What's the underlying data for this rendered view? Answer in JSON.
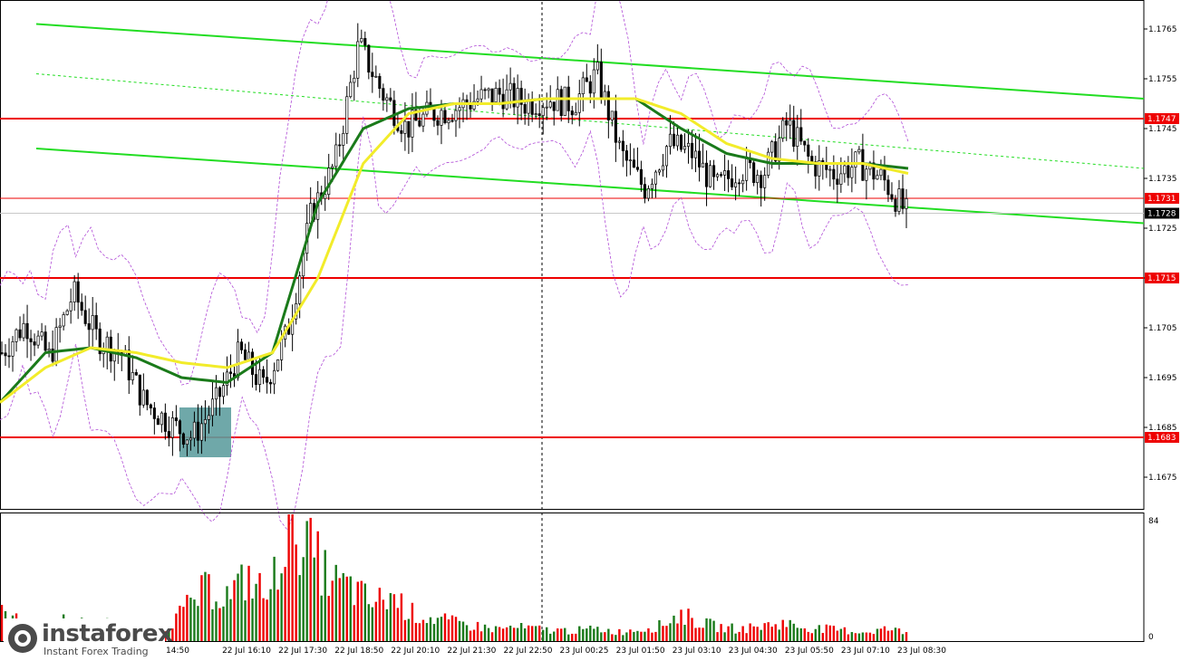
{
  "chart_data": [
    {
      "type": "candlestick",
      "symbol": "",
      "y_axis": {
        "ticks": [
          "1.1765",
          "1.1755",
          "1.1745",
          "1.1735",
          "1.1725",
          "1.1715",
          "1.1705",
          "1.1695",
          "1.1685",
          "1.1675"
        ],
        "range": [
          1.1669,
          1.1769
        ]
      },
      "x_axis": {
        "ticks": [
          "14:50",
          "22 Jul 16:10",
          "22 Jul 17:30",
          "22 Jul 18:50",
          "22 Jul 20:10",
          "22 Jul 21:30",
          "22 Jul 22:50",
          "23 Jul 00:25",
          "23 Jul 01:50",
          "23 Jul 03:10",
          "23 Jul 04:30",
          "23 Jul 05:50",
          "23 Jul 07:10",
          "23 Jul 08:30"
        ]
      },
      "price_lines": [
        {
          "value": 1.1747,
          "label": "1.1747",
          "color": "#ee0000"
        },
        {
          "value": 1.1731,
          "label": "1.1731",
          "color": "#ee0000"
        },
        {
          "value": 1.1715,
          "label": "1.1715",
          "color": "#ee0000"
        },
        {
          "value": 1.1683,
          "label": "1.1683",
          "color": "#ee0000"
        }
      ],
      "current_price": {
        "value": 1.1728,
        "label": "1.1728"
      },
      "price_path": [
        1.17,
        1.1706,
        1.1699,
        1.1712,
        1.1703,
        1.17,
        1.169,
        1.1686,
        1.1683,
        1.169,
        1.17,
        1.1693,
        1.1704,
        1.1728,
        1.1738,
        1.1762,
        1.1752,
        1.1745,
        1.1748,
        1.1749,
        1.1751,
        1.1752,
        1.175,
        1.1751,
        1.175,
        1.1756,
        1.174,
        1.1733,
        1.1742,
        1.174,
        1.1733,
        1.1737,
        1.1736,
        1.1746,
        1.1738,
        1.1736,
        1.1738,
        1.1735,
        1.1728
      ],
      "moving_averages": [
        {
          "color": "#1a7a1a",
          "path": [
            1.169,
            1.17,
            1.1701,
            1.1699,
            1.1695,
            1.1694,
            1.17,
            1.173,
            1.1745,
            1.1749,
            1.175,
            1.175,
            1.1751,
            1.1751,
            1.1751,
            1.1745,
            1.174,
            1.1738,
            1.1738,
            1.1738,
            1.1737
          ]
        },
        {
          "color": "#f2ec2a",
          "path": [
            1.169,
            1.1697,
            1.1701,
            1.17,
            1.1698,
            1.1697,
            1.17,
            1.1715,
            1.1738,
            1.1748,
            1.175,
            1.175,
            1.1751,
            1.1751,
            1.1751,
            1.1748,
            1.1742,
            1.1739,
            1.1738,
            1.1738,
            1.1736
          ]
        }
      ],
      "channel_lines": [
        {
          "color": "#22dd22",
          "from": 1.1766,
          "to": 1.1751
        },
        {
          "color": "#22dd22",
          "from": 1.1741,
          "to": 1.1726
        },
        {
          "color": "#22dd22",
          "style": "dotted",
          "from": 1.1756,
          "to": 1.1737
        }
      ],
      "highlight_box": {
        "color": "#5f9ea0",
        "from": 1.1689,
        "to": 1.1679
      },
      "grid": false
    },
    {
      "type": "bar",
      "name": "",
      "y_axis": {
        "ticks": [
          "84",
          "0"
        ],
        "range": [
          0,
          84
        ]
      },
      "colors": {
        "up": "#1a7a1a",
        "down": "#ee0000"
      },
      "volume_profile": [
        18,
        12,
        10,
        14,
        11,
        12,
        9,
        8,
        10,
        22,
        35,
        30,
        42,
        28,
        84,
        60,
        40,
        35,
        25,
        30,
        18,
        15,
        12,
        10,
        8,
        9,
        8,
        7,
        7,
        8,
        6,
        8,
        10,
        18,
        12,
        9,
        8,
        10,
        12,
        9,
        8,
        7,
        6,
        8,
        6
      ]
    }
  ],
  "branding": {
    "name": "instaforex",
    "tagline": "Instant Forex Trading"
  }
}
